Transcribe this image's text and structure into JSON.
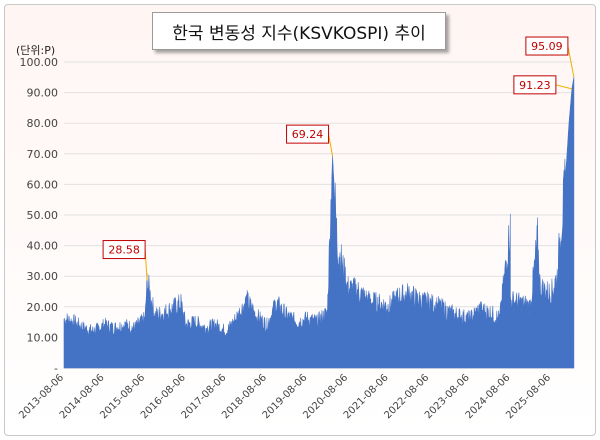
{
  "title": "한국 변동성 지수(KSVKOSPI) 추이",
  "unit_label": "(단위:P)",
  "colors": {
    "series": "#4472c4",
    "callout_border": "#c00000",
    "callout_text": "#c00000",
    "leader_line": "#f0b000",
    "grid": "#e2e2e2"
  },
  "chart_data": {
    "type": "area",
    "title": "한국 변동성 지수(KSVKOSPI) 추이",
    "ylabel": "(단위:P)",
    "xlabel": "",
    "ylim": [
      0,
      100
    ],
    "grid": true,
    "legend": "none",
    "y_ticks": [
      "-",
      "10.00",
      "20.00",
      "30.00",
      "40.00",
      "50.00",
      "60.00",
      "70.00",
      "80.00",
      "90.00",
      "100.00"
    ],
    "x_ticks": [
      "2013-08-06",
      "2014-08-06",
      "2015-08-06",
      "2016-08-06",
      "2017-08-06",
      "2018-08-06",
      "2019-08-06",
      "2020-08-06",
      "2021-08-06",
      "2022-08-06",
      "2023-08-06",
      "2024-08-06",
      "2025-08-06"
    ],
    "series": [
      {
        "x": [
          "2013-08-06",
          "2013-11-01",
          "2014-02-01",
          "2014-05-01",
          "2014-08-06",
          "2014-11-01",
          "2015-02-01",
          "2015-05-01",
          "2015-08-06",
          "2015-08-24",
          "2015-11-01",
          "2016-02-01",
          "2016-06-24",
          "2016-08-06",
          "2016-11-01",
          "2017-02-01",
          "2017-05-01",
          "2017-08-06",
          "2017-11-01",
          "2018-02-06",
          "2018-05-01",
          "2018-08-06",
          "2018-10-29",
          "2019-02-01",
          "2019-05-01",
          "2019-08-06",
          "2019-11-01",
          "2020-02-01",
          "2020-03-19",
          "2020-05-01",
          "2020-08-06",
          "2020-11-01",
          "2021-02-01",
          "2021-05-01",
          "2021-08-06",
          "2021-11-01",
          "2022-02-01",
          "2022-05-01",
          "2022-08-06",
          "2022-11-01",
          "2023-02-01",
          "2023-05-01",
          "2023-08-06",
          "2023-11-01",
          "2024-02-01",
          "2024-05-01",
          "2024-08-05",
          "2024-08-06",
          "2024-11-01",
          "2025-02-01",
          "2025-04-07",
          "2025-05-01",
          "2025-08-06",
          "2025-10-01",
          "2025-11-01",
          "2025-12-01",
          "2026-01-15",
          "2026-02-10",
          "2026-02-28"
        ],
        "values": [
          16,
          15,
          13,
          12,
          14,
          13,
          14,
          13,
          16,
          28.58,
          17,
          18,
          21,
          14,
          15,
          13,
          14,
          12,
          16,
          22,
          17,
          14,
          21,
          17,
          15,
          16,
          15,
          18,
          69.24,
          40,
          26,
          25,
          22,
          21,
          20,
          23,
          24,
          22,
          21,
          20,
          18,
          17,
          16,
          19,
          18,
          16,
          46,
          22,
          21,
          20,
          42,
          26,
          24,
          30,
          45,
          55,
          80,
          91.23,
          95.09
        ]
      }
    ],
    "annotations": [
      {
        "label": "28.58",
        "date": "2015-08-24",
        "value": 28.58
      },
      {
        "label": "69.24",
        "date": "2020-03-19",
        "value": 69.24
      },
      {
        "label": "95.09",
        "date": "2026-02-28",
        "value": 95.09
      },
      {
        "label": "91.23",
        "date": "2026-02-10",
        "value": 91.23
      }
    ]
  }
}
